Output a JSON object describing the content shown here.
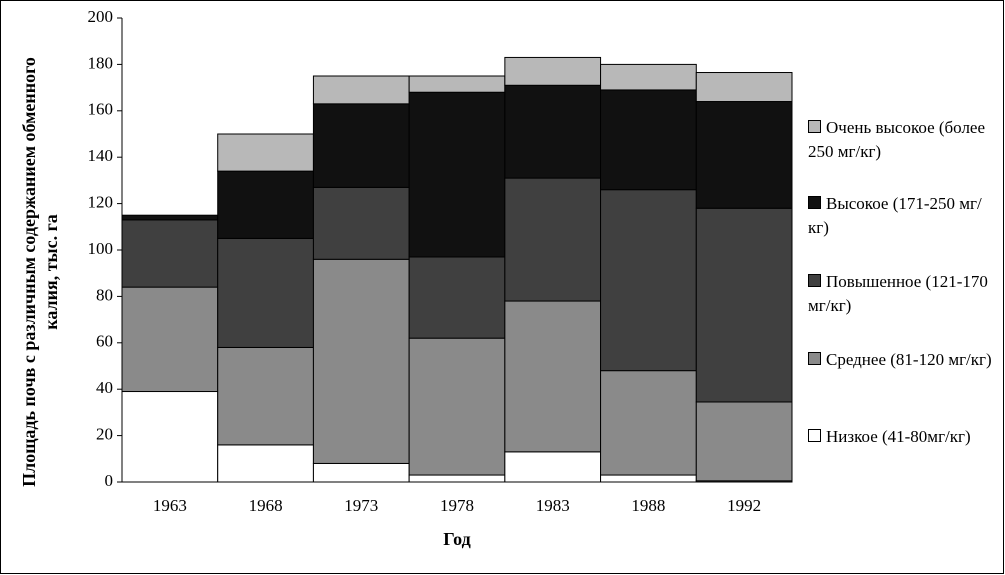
{
  "chart_data": {
    "type": "stacked-bar",
    "y_label": "Площадь почв с различным содержанием обменного калия, тыс. га",
    "x_label": "Год",
    "categories": [
      "1963",
      "1968",
      "1973",
      "1978",
      "1983",
      "1988",
      "1992"
    ],
    "series": [
      {
        "name": "Низкое (41-80мг/кг)",
        "color": "#ffffff",
        "values": [
          39,
          16,
          8,
          3,
          13,
          3,
          0.5
        ]
      },
      {
        "name": "Среднее (81-120 мг/кг)",
        "color": "#8a8a8a",
        "values": [
          45,
          42,
          88,
          59,
          65,
          45,
          34
        ]
      },
      {
        "name": "Повышенное (121-170 мг/кг)",
        "color": "#404040",
        "values": [
          29,
          47,
          31,
          35,
          53,
          78,
          83.5
        ]
      },
      {
        "name": "Высокое (171-250 мг/кг)",
        "color": "#111111",
        "values": [
          2,
          29,
          36,
          71,
          40,
          43,
          46
        ]
      },
      {
        "name": "Очень высокое (более 250 мг/кг)",
        "color": "#b8b8b8",
        "values": [
          0,
          16,
          12,
          7,
          12,
          11,
          12.5
        ]
      }
    ],
    "ylim": [
      0,
      200
    ],
    "yticks": [
      0,
      20,
      40,
      60,
      80,
      100,
      120,
      140,
      160,
      180,
      200
    ]
  }
}
